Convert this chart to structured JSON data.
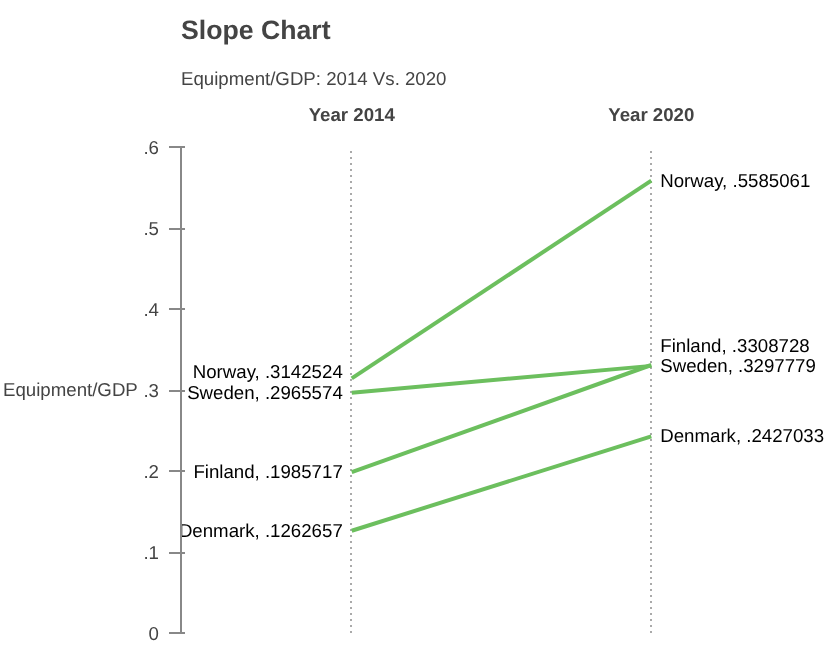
{
  "chart_data": {
    "type": "line",
    "title": "Slope Chart",
    "subtitle": "Equipment/GDP: 2014 Vs. 2020",
    "ylabel": "Equipment/GDP",
    "categories": [
      "Year 2014",
      "Year 2020"
    ],
    "series": [
      {
        "color": "#6cbf5e",
        "values": [
          0.3142524,
          0.5585061
        ],
        "value_labels": [
          "Norway, .3142524",
          "Norway, .5585061"
        ]
      },
      {
        "color": "#6cbf5e",
        "values": [
          0.2965574,
          0.3297779
        ],
        "value_labels": [
          "Sweden, .2965574",
          "Sweden, .3297779"
        ]
      },
      {
        "color": "#6cbf5e",
        "values": [
          0.1985717,
          0.3308728
        ],
        "value_labels": [
          "Finland, .1985717",
          "Finland, .3308728"
        ]
      },
      {
        "color": "#6cbf5e",
        "values": [
          0.1262657,
          0.2427033
        ],
        "value_labels": [
          "Denmark, .1262657",
          "Denmark, .2427033"
        ]
      }
    ],
    "ylim": [
      0,
      0.6
    ],
    "yticks": [
      {
        "value": 0,
        "label": "0"
      },
      {
        "value": 0.1,
        "label": ".1"
      },
      {
        "value": 0.2,
        "label": ".2"
      },
      {
        "value": 0.3,
        "label": ".3"
      },
      {
        "value": 0.4,
        "label": ".4"
      },
      {
        "value": 0.5,
        "label": ".5"
      },
      {
        "value": 0.6,
        "label": ".6"
      }
    ],
    "grid": "x",
    "marker": "none",
    "line_style": "solid"
  }
}
